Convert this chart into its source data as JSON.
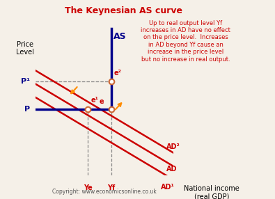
{
  "title": "The Keynesian AS curve",
  "title_color": "#cc0000",
  "bg_color": "#f5f0e8",
  "xlabel": "National income\n(real GDP)",
  "ylabel": "Price\nLevel",
  "annotation_text": "Up to real output level Yf\nincreases in AD have no effect\non the price level.  Increases\nin AD beyond Yf cause an\nincrease in the price level\nbut no increase in real output.",
  "annotation_color": "#cc0000",
  "copyright": "Copyright: www.economicsonline.co.uk",
  "as_color": "#00008b",
  "ad_color": "#cc0000",
  "dashed_color": "#888888",
  "Ye": 0.38,
  "Yf": 0.55,
  "P": 0.44,
  "P1": 0.63,
  "ad_slope": -0.55,
  "ad_intercepts": [
    0.52,
    0.61,
    0.7
  ],
  "ad_labels": [
    "AD¹",
    "AD",
    "AD²"
  ],
  "xlim": [
    0,
    1.0
  ],
  "ylim": [
    0,
    1.0
  ]
}
